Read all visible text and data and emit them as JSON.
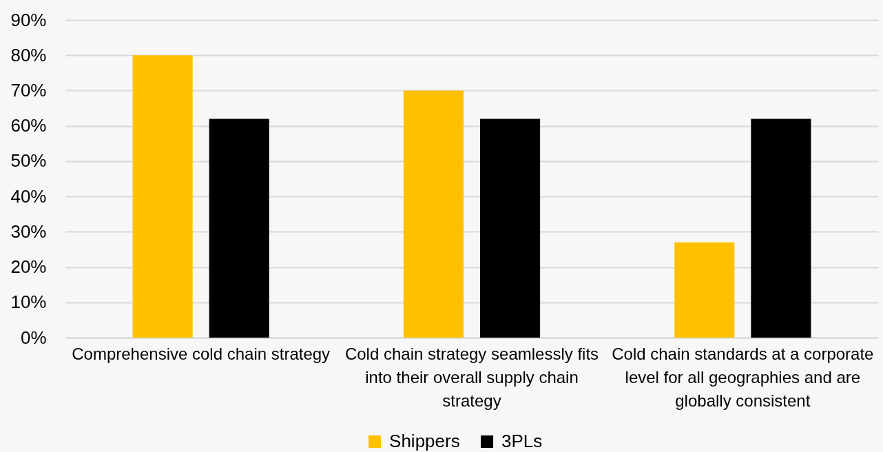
{
  "chart_data": {
    "type": "bar",
    "categories": [
      "Comprehensive cold chain strategy",
      "Cold chain strategy seamlessly fits into their overall supply chain strategy",
      "Cold chain standards at a corporate level for all geographies and are globally consistent"
    ],
    "series": [
      {
        "name": "Shippers",
        "color": "#ffc000",
        "values": [
          80,
          70,
          27
        ]
      },
      {
        "name": "3PLs",
        "color": "#000000",
        "values": [
          62,
          62,
          62
        ]
      }
    ],
    "ylim": [
      0,
      90
    ],
    "yticks": [
      {
        "value": 0,
        "label": "0%"
      },
      {
        "value": 10,
        "label": "10%"
      },
      {
        "value": 20,
        "label": "20%"
      },
      {
        "value": 30,
        "label": "30%"
      },
      {
        "value": 40,
        "label": "40%"
      },
      {
        "value": 50,
        "label": "50%"
      },
      {
        "value": 60,
        "label": "60%"
      },
      {
        "value": 70,
        "label": "70%"
      },
      {
        "value": 80,
        "label": "80%"
      },
      {
        "value": 90,
        "label": "90%"
      }
    ],
    "grid": "y",
    "legend": "bottom"
  }
}
